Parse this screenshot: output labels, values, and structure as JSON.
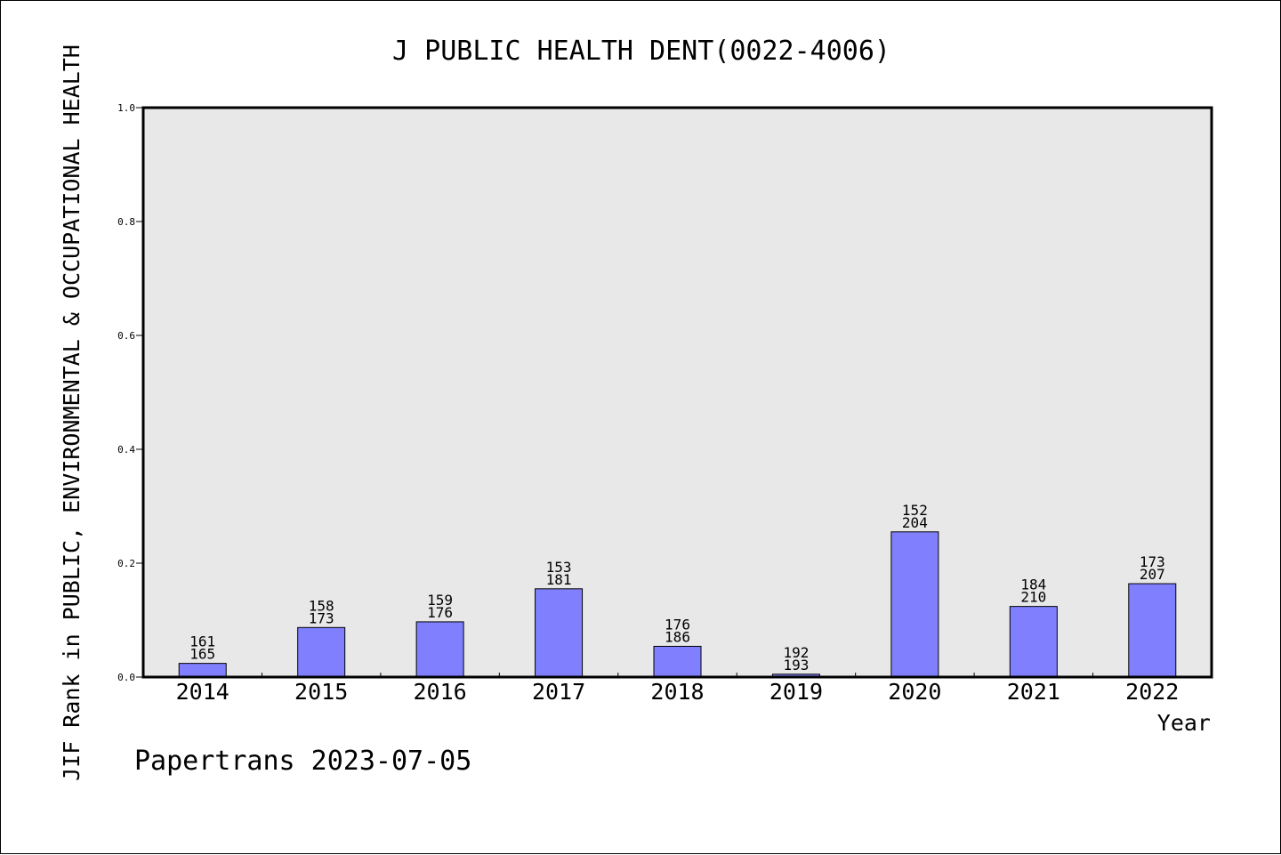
{
  "chart_data": {
    "type": "bar",
    "title": "J PUBLIC HEALTH DENT(0022-4006)",
    "xlabel": "Year",
    "ylabel": "JIF Rank in PUBLIC, ENVIRONMENTAL & OCCUPATIONAL HEALTH",
    "ylim": [
      0.0,
      1.0
    ],
    "yticks": [
      "0.0",
      "0.2",
      "0.4",
      "0.6",
      "0.8",
      "1.0"
    ],
    "categories": [
      "2014",
      "2015",
      "2016",
      "2017",
      "2018",
      "2019",
      "2020",
      "2021",
      "2022"
    ],
    "values": [
      0.024,
      0.087,
      0.097,
      0.155,
      0.054,
      0.005,
      0.255,
      0.124,
      0.164
    ],
    "rank": [
      "161",
      "158",
      "159",
      "153",
      "176",
      "192",
      "152",
      "184",
      "173"
    ],
    "total": [
      "165",
      "173",
      "176",
      "181",
      "186",
      "193",
      "204",
      "210",
      "207"
    ],
    "grid": false,
    "legend": "none",
    "colors": {
      "bar_fill": "#8080ff",
      "plot_bg": "#e8e8e8"
    }
  },
  "footer": "Papertrans 2023-07-05"
}
